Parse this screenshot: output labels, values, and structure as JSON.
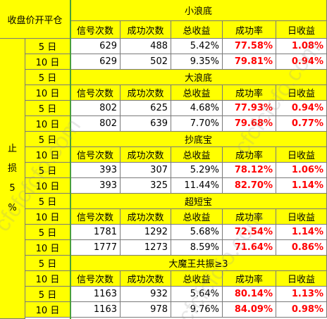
{
  "corner_label": "收盘价开平仓",
  "stoploss_chars": [
    "止",
    "损",
    "5",
    "%"
  ],
  "headers": [
    "信号次数",
    "成功次数",
    "总收益",
    "成功率",
    "日收益"
  ],
  "sections": [
    {
      "title": "小浪底",
      "rows": [
        {
          "period": "5 日",
          "signals": "629",
          "success": "488",
          "total": "5.42%",
          "rate": "77.58%",
          "daily": "1.08%"
        },
        {
          "period": "10 日",
          "signals": "629",
          "success": "502",
          "total": "9.35%",
          "rate": "79.81%",
          "daily": "0.94%"
        }
      ]
    },
    {
      "title": "大浪底",
      "period_a": "5 日",
      "period_b": "10 日",
      "rows": [
        {
          "period": "5 日",
          "signals": "802",
          "success": "625",
          "total": "4.68%",
          "rate": "77.93%",
          "daily": "0.94%"
        },
        {
          "period": "10 日",
          "signals": "802",
          "success": "639",
          "total": "7.70%",
          "rate": "79.68%",
          "daily": "0.77%"
        }
      ]
    },
    {
      "title": "抄底宝",
      "period_a": "5 日",
      "period_b": "10 日",
      "rows": [
        {
          "period": "5 日",
          "signals": "393",
          "success": "307",
          "total": "5.29%",
          "rate": "78.12%",
          "daily": "1.06%"
        },
        {
          "period": "10 日",
          "signals": "393",
          "success": "325",
          "total": "11.44%",
          "rate": "82.70%",
          "daily": "1.14%"
        }
      ]
    },
    {
      "title": "超短宝",
      "period_a": "5 日",
      "period_b": "10 日",
      "rows": [
        {
          "period": "5 日",
          "signals": "1781",
          "success": "1292",
          "total": "5.68%",
          "rate": "72.54%",
          "daily": "1.14%"
        },
        {
          "period": "10 日",
          "signals": "1777",
          "success": "1273",
          "total": "8.59%",
          "rate": "71.64%",
          "daily": "0.86%"
        }
      ]
    },
    {
      "title": "大魔王共振≥3",
      "period_a": "5 日",
      "period_b": "10 日",
      "rows": [
        {
          "period": "5 日",
          "signals": "1163",
          "success": "932",
          "total": "5.64%",
          "rate": "80.14%",
          "daily": "1.13%"
        },
        {
          "period": "10 日",
          "signals": "1163",
          "success": "978",
          "total": "9.76%",
          "rate": "84.09%",
          "daily": "0.98%"
        }
      ]
    }
  ],
  "colors": {
    "header_bg": "#ffff00",
    "accent_red": "#ff0000",
    "grid": "#7a7a7a"
  },
  "watermark": "cfcfcfcfo.com"
}
